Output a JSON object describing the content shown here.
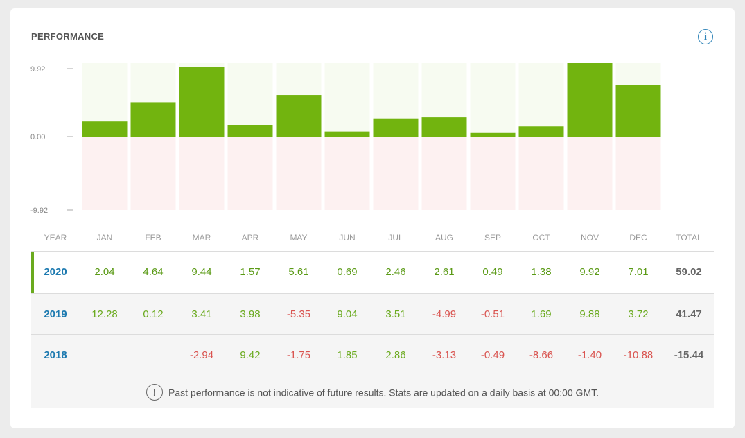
{
  "title": "PERFORMANCE",
  "info_icon": "info-icon",
  "colors": {
    "positive_bar": "#72b40f",
    "positive_bg": "#f7fbf1",
    "negative_bg": "#fdf1f1",
    "positive_text": "#6aaa1e",
    "negative_text": "#d9534f",
    "year_text": "#1d7ab0"
  },
  "chart_data": {
    "type": "bar",
    "categories": [
      "JAN",
      "FEB",
      "MAR",
      "APR",
      "MAY",
      "JUN",
      "JUL",
      "AUG",
      "SEP",
      "OCT",
      "NOV",
      "DEC"
    ],
    "series": [
      {
        "values": [
          2.04,
          4.64,
          9.44,
          1.57,
          5.61,
          0.69,
          2.46,
          2.61,
          0.49,
          1.38,
          9.92,
          7.01
        ]
      }
    ],
    "yticks": [
      "9.92",
      "0.00",
      "-9.92"
    ],
    "ylim": [
      -9.92,
      9.92
    ]
  },
  "table": {
    "headers": [
      "YEAR",
      "JAN",
      "FEB",
      "MAR",
      "APR",
      "MAY",
      "JUN",
      "JUL",
      "AUG",
      "SEP",
      "OCT",
      "NOV",
      "DEC",
      "TOTAL"
    ],
    "rows": [
      {
        "year": "2020",
        "values": [
          "2.04",
          "4.64",
          "9.44",
          "1.57",
          "5.61",
          "0.69",
          "2.46",
          "2.61",
          "0.49",
          "1.38",
          "9.92",
          "7.01"
        ],
        "total": "59.02"
      },
      {
        "year": "2019",
        "values": [
          "12.28",
          "0.12",
          "3.41",
          "3.98",
          "-5.35",
          "9.04",
          "3.51",
          "-4.99",
          "-0.51",
          "1.69",
          "9.88",
          "3.72"
        ],
        "total": "41.47"
      },
      {
        "year": "2018",
        "values": [
          "",
          "",
          "-2.94",
          "9.42",
          "-1.75",
          "1.85",
          "2.86",
          "-3.13",
          "-0.49",
          "-8.66",
          "-1.40",
          "-10.88"
        ],
        "total": "-15.44"
      }
    ]
  },
  "note": {
    "icon": "exclamation-icon",
    "text": "Past performance is not indicative of future results. Stats are updated on a daily basis at 00:00 GMT."
  }
}
